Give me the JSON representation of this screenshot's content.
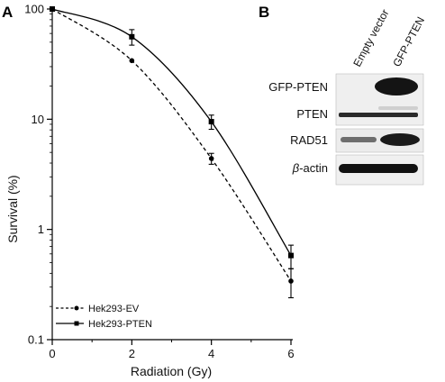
{
  "panels": {
    "a": "A",
    "b": "B"
  },
  "chart_data": {
    "type": "line",
    "title": "",
    "xlabel": "Radiation (Gy)",
    "ylabel": "Survival (%)",
    "y_scale": "log",
    "xlim": [
      0,
      6
    ],
    "ylim": [
      0.1,
      100
    ],
    "x_ticks": [
      "0",
      "2",
      "4",
      "6"
    ],
    "y_ticks": [
      "0.1",
      "1",
      "10",
      "100"
    ],
    "legend_position": "bottom-left",
    "series": [
      {
        "name": "Hek293-EV",
        "style": "dashed",
        "marker": "circle",
        "color": "#000000",
        "x": [
          0,
          2,
          4,
          6
        ],
        "y": [
          100,
          34,
          4.4,
          0.34
        ],
        "err": [
          0,
          0,
          0.5,
          0.1
        ]
      },
      {
        "name": "Hek293-PTEN",
        "style": "solid",
        "marker": "square",
        "color": "#000000",
        "x": [
          0,
          2,
          4,
          6
        ],
        "y": [
          100,
          56,
          9.5,
          0.58
        ],
        "err": [
          0,
          9,
          1.4,
          0.14
        ]
      }
    ]
  },
  "blot": {
    "lanes": [
      "Empty vector",
      "GFP-PTEN"
    ],
    "rows": [
      "GFP-PTEN",
      "PTEN",
      "RAD51",
      "β-actin"
    ]
  }
}
